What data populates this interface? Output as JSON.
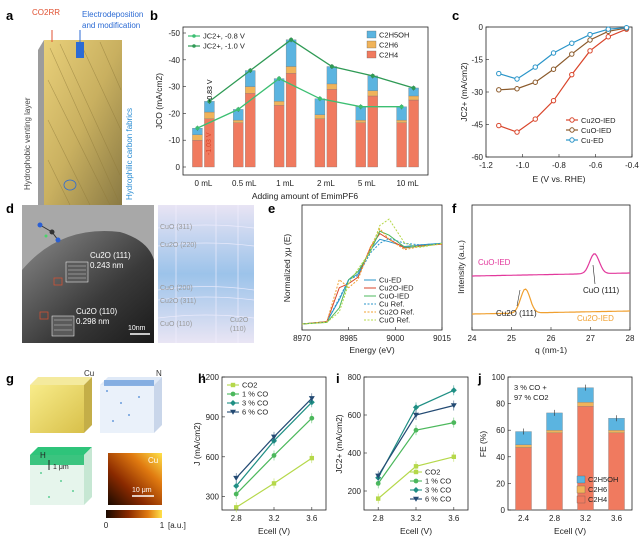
{
  "colors": {
    "c2h5oh": "#5bb4e0",
    "c2h6": "#f0b35a",
    "c2h4": "#f07a5f",
    "green_line": "#3cbf72",
    "darkgreen_line": "#2f9a55",
    "cu2o_ied": "#d9452b",
    "cuo_ied": "#8b5a2b",
    "cu_ed": "#2a95c9",
    "magenta": "#e2389c",
    "orange": "#f0a030",
    "lime": "#b5d84a",
    "green": "#4cb85c",
    "teal": "#1f8f84",
    "navy": "#234a73"
  },
  "panel_labels": {
    "a": "a",
    "b": "b",
    "c": "c",
    "d": "d",
    "e": "e",
    "f": "f",
    "g": "g",
    "h": "h",
    "i": "i",
    "j": "j"
  },
  "panel_a": {
    "co2rr": "CO2RR",
    "electro1": "Electrodeposition",
    "electro2": "and modification",
    "hydrophobic": "Hydrophobic venting layer",
    "hydrophilic": "Hydrophilic carbon fabrics"
  },
  "panel_d": {
    "cu2o111": "Cu2O (111)",
    "d1": "0.243 nm",
    "cu2o110": "Cu2O (110)",
    "d2": "0.298 nm",
    "scale": "10nm",
    "cuo311": "CuO (311)",
    "cu2o220": "Cu2O (220)",
    "cuo200": "CuO (200)",
    "cu2o311": "Cu2O (311)",
    "cuo110": "CuO (110)",
    "cu2o110r": "Cu2O",
    "cu2o110r2": "(110)"
  },
  "panel_g": {
    "cu": "Cu",
    "n": "N",
    "h": "H",
    "cu2": "Cu",
    "scale1": "1 μm",
    "scale2": "10 μm",
    "cb_min": "0",
    "cb_max": "1",
    "cb_unit": "[a.u.]"
  },
  "chart_data": [
    {
      "panel": "b",
      "type": "bar",
      "title": "",
      "categories": [
        "0 mL",
        "0.5 mL",
        "1 mL",
        "2 mL",
        "5 mL",
        "10 mL"
      ],
      "xlabel": "Adding amount of EmimPF6",
      "ylabel": "JCO (mA/cm2)",
      "ylim": [
        0,
        -50
      ],
      "yticks": [
        "0",
        "-10",
        "-20",
        "-30",
        "-40",
        "-50"
      ],
      "annotations": [
        "-0.83 V",
        "-1.03 V"
      ],
      "bar_groups": [
        {
          "name": "-0.8 V",
          "C2H4": [
            -10,
            -16.5,
            -23,
            -18,
            -16.5,
            -16.5
          ],
          "C2H6": [
            -2,
            -1,
            -1.5,
            -1.5,
            -1,
            -1
          ],
          "C2H5OH": [
            -2.5,
            -4,
            -8.5,
            -6,
            -5,
            -5
          ]
        },
        {
          "name": "-1.0 V",
          "C2H4": [
            -18,
            -27.5,
            -35,
            -29,
            -26.5,
            -25
          ],
          "C2H6": [
            -2.5,
            -2.5,
            -2.5,
            -2,
            -2,
            -1.5
          ],
          "C2H5OH": [
            -4,
            -6,
            -10,
            -6.5,
            -5.5,
            -3
          ]
        }
      ],
      "series": [
        {
          "name": "JC2+, -0.8 V",
          "values": [
            -14.5,
            -21.5,
            -33,
            -25.5,
            -22.5,
            -22.5
          ]
        },
        {
          "name": "JC2+, -1.0 V",
          "values": [
            -24.5,
            -36,
            -47.5,
            -37.5,
            -34,
            -29.5
          ]
        }
      ],
      "legend": [
        "C2H5OH",
        "C2H6",
        "C2H4"
      ]
    },
    {
      "panel": "c",
      "type": "line",
      "xlabel": "E (V vs. RHE)",
      "ylabel": "JC2+ (mA/cm2)",
      "xlim": [
        -1.2,
        -0.4
      ],
      "ylim": [
        -60,
        0
      ],
      "xticks": [
        "-1.2",
        "-1.0",
        "-0.8",
        "-0.6",
        "-0.4"
      ],
      "yticks": [
        "0",
        "-15",
        "-30",
        "-45",
        "-60"
      ],
      "series": [
        {
          "name": "Cu2O-IED",
          "x": [
            -1.13,
            -1.03,
            -0.93,
            -0.83,
            -0.73,
            -0.63,
            -0.53,
            -0.43
          ],
          "y": [
            -45.5,
            -48.5,
            -42.5,
            -34,
            -22,
            -11,
            -4.5,
            -1
          ]
        },
        {
          "name": "CuO-IED",
          "x": [
            -1.13,
            -1.03,
            -0.93,
            -0.83,
            -0.73,
            -0.63,
            -0.53,
            -0.43
          ],
          "y": [
            -29,
            -28.5,
            -25.5,
            -19.5,
            -12.5,
            -6,
            -2,
            -0.5
          ]
        },
        {
          "name": "Cu-ED",
          "x": [
            -1.13,
            -1.03,
            -0.93,
            -0.83,
            -0.73,
            -0.63,
            -0.53,
            -0.43
          ],
          "y": [
            -21.5,
            -24,
            -18.5,
            -12,
            -7.5,
            -3.5,
            -1,
            -0.3
          ]
        }
      ]
    },
    {
      "panel": "e",
      "type": "line",
      "xlabel": "Energy (eV)",
      "ylabel": "Normalized χμ (E)",
      "xlim": [
        8970,
        9015
      ],
      "xticks": [
        "8970",
        "8985",
        "9000",
        "9015"
      ],
      "series": [
        {
          "name": "Cu-ED",
          "x": [
            8970,
            8978,
            8982,
            8985,
            8988,
            8992,
            8995,
            8998,
            9003,
            9008,
            9015
          ],
          "y": [
            0,
            0.03,
            0.3,
            0.55,
            0.62,
            0.92,
            1.05,
            1.02,
            0.96,
            0.98,
            1.0
          ]
        },
        {
          "name": "Cu2O-IED",
          "x": [
            8970,
            8978,
            8982,
            8985,
            8988,
            8992,
            8995,
            8998,
            9003,
            9008,
            9015
          ],
          "y": [
            0,
            0.03,
            0.45,
            0.5,
            0.58,
            0.95,
            1.12,
            1.05,
            0.94,
            0.97,
            0.99
          ]
        },
        {
          "name": "CuO-IED",
          "x": [
            8970,
            8978,
            8982,
            8985,
            8988,
            8992,
            8995,
            8998,
            9003,
            9008,
            9015
          ],
          "y": [
            0,
            0.02,
            0.2,
            0.55,
            0.65,
            0.9,
            1.15,
            1.1,
            0.95,
            0.96,
            1.0
          ]
        },
        {
          "name": "Cu Ref.",
          "x": [
            8970,
            8978,
            8982,
            8985,
            8988,
            8992,
            8995,
            8998,
            9003,
            9008,
            9015
          ],
          "y": [
            0,
            0.03,
            0.32,
            0.55,
            0.6,
            0.88,
            1.0,
            1.06,
            1.0,
            0.98,
            1.0
          ]
        },
        {
          "name": "Cu2O Ref.",
          "x": [
            8970,
            8978,
            8982,
            8985,
            8988,
            8992,
            8995,
            8998,
            9003,
            9008,
            9015
          ],
          "y": [
            0,
            0.03,
            0.55,
            0.45,
            0.55,
            0.95,
            1.18,
            1.05,
            0.92,
            0.96,
            0.99
          ]
        },
        {
          "name": "CuO Ref.",
          "x": [
            8970,
            8978,
            8982,
            8985,
            8988,
            8992,
            8995,
            8998,
            9003,
            9008,
            9015
          ],
          "y": [
            0,
            0.02,
            0.15,
            0.5,
            0.68,
            0.9,
            1.22,
            1.3,
            1.0,
            0.95,
            1.0
          ]
        }
      ]
    },
    {
      "panel": "f",
      "type": "line",
      "xlabel": "q (nm-1)",
      "ylabel": "Intensity (a.u.)",
      "xlim": [
        24,
        28
      ],
      "xticks": [
        "24",
        "25",
        "26",
        "27",
        "28"
      ],
      "annotations": [
        "CuO (111)",
        "Cu2O (111)"
      ],
      "series": [
        {
          "name": "CuO-IED",
          "peak": 27.1
        },
        {
          "name": "Cu2O-IED",
          "peak": 25.35
        }
      ]
    },
    {
      "panel": "h",
      "type": "line",
      "xlabel": "Ecell (V)",
      "ylabel": "J (mA/cm2)",
      "x": [
        2.8,
        3.2,
        3.6
      ],
      "ylim": [
        200,
        1200
      ],
      "yticks": [
        "300",
        "600",
        "900",
        "1200"
      ],
      "series": [
        {
          "name": "CO2",
          "values": [
            220,
            400,
            590
          ]
        },
        {
          "name": "1 % CO",
          "values": [
            320,
            610,
            890
          ]
        },
        {
          "name": "3 % CO",
          "values": [
            380,
            720,
            1010
          ]
        },
        {
          "name": "6 % CO",
          "values": [
            440,
            750,
            1040
          ]
        }
      ]
    },
    {
      "panel": "i",
      "type": "line",
      "xlabel": "Ecell (V)",
      "ylabel": "JC2+ (mA/cm2)",
      "x": [
        2.8,
        3.2,
        3.6
      ],
      "ylim": [
        100,
        800
      ],
      "yticks": [
        "200",
        "400",
        "600",
        "800"
      ],
      "series": [
        {
          "name": "CO2",
          "values": [
            160,
            330,
            380
          ]
        },
        {
          "name": "1 % CO",
          "values": [
            240,
            520,
            560
          ]
        },
        {
          "name": "3 % CO",
          "values": [
            270,
            640,
            730
          ]
        },
        {
          "name": "6 % CO",
          "values": [
            280,
            600,
            650
          ]
        }
      ]
    },
    {
      "panel": "j",
      "type": "bar",
      "xlabel": "Ecell (V)",
      "ylabel": "FE (%)",
      "categories": [
        "2.4",
        "2.8",
        "3.2",
        "3.6"
      ],
      "ylim": [
        0,
        100
      ],
      "yticks": [
        "0",
        "20",
        "40",
        "60",
        "80",
        "100"
      ],
      "annotation1": "3 % CO +",
      "annotation2": "97 % CO2",
      "series": [
        {
          "name": "C2H4",
          "values": [
            47,
            58,
            78,
            58
          ]
        },
        {
          "name": "C2H6",
          "values": [
            2,
            2,
            3,
            2
          ]
        },
        {
          "name": "C2H5OH",
          "values": [
            10,
            13,
            11,
            9
          ]
        }
      ],
      "legend": [
        "C2H5OH",
        "C2H6",
        "C2H4"
      ]
    }
  ]
}
